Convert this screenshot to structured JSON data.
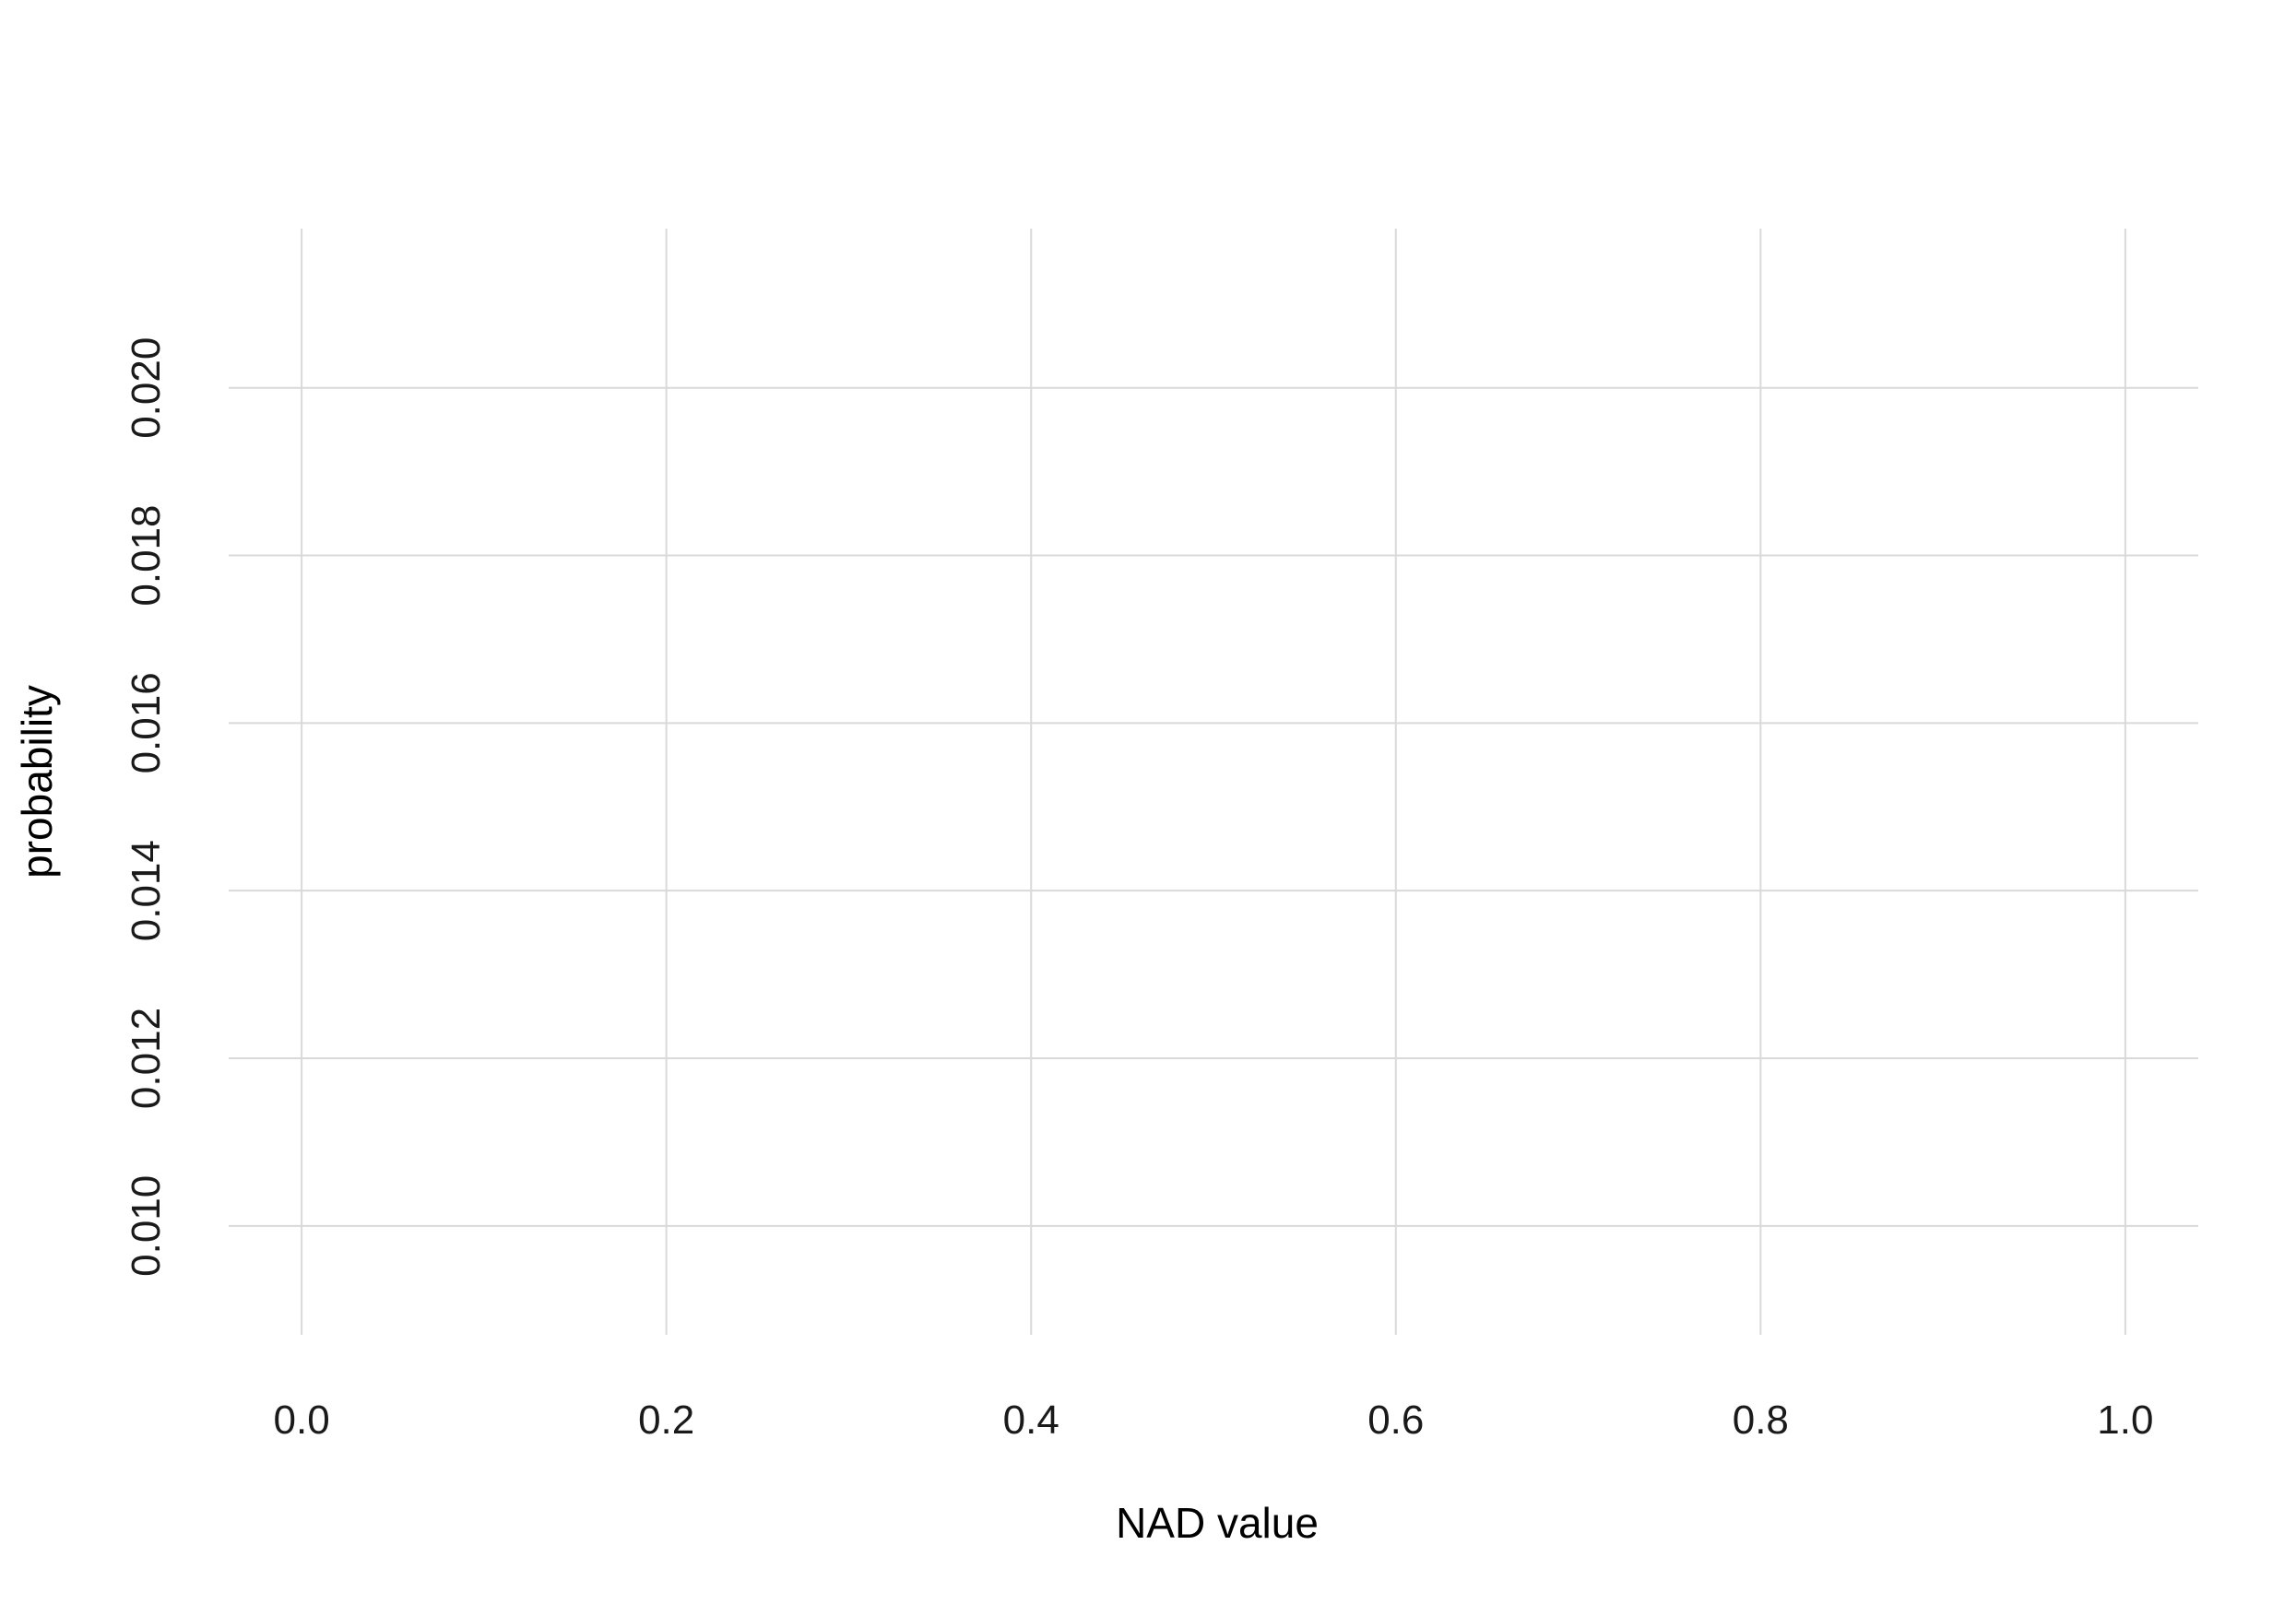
{
  "chart_data": {
    "type": "line",
    "title": "",
    "xlabel": "NAD value",
    "ylabel": "probability",
    "xlim": [
      -0.04,
      1.04
    ],
    "ylim": [
      0.0087,
      0.0219
    ],
    "x_ticks": [
      0.0,
      0.2,
      0.4,
      0.6,
      0.8,
      1.0
    ],
    "x_tick_labels": [
      "0.0",
      "0.2",
      "0.4",
      "0.6",
      "0.8",
      "1.0"
    ],
    "y_ticks": [
      0.01,
      0.012,
      0.014,
      0.016,
      0.018,
      0.02
    ],
    "y_tick_labels": [
      "0.010",
      "0.012",
      "0.014",
      "0.016",
      "0.018",
      "0.020"
    ],
    "grid": true,
    "series": []
  }
}
